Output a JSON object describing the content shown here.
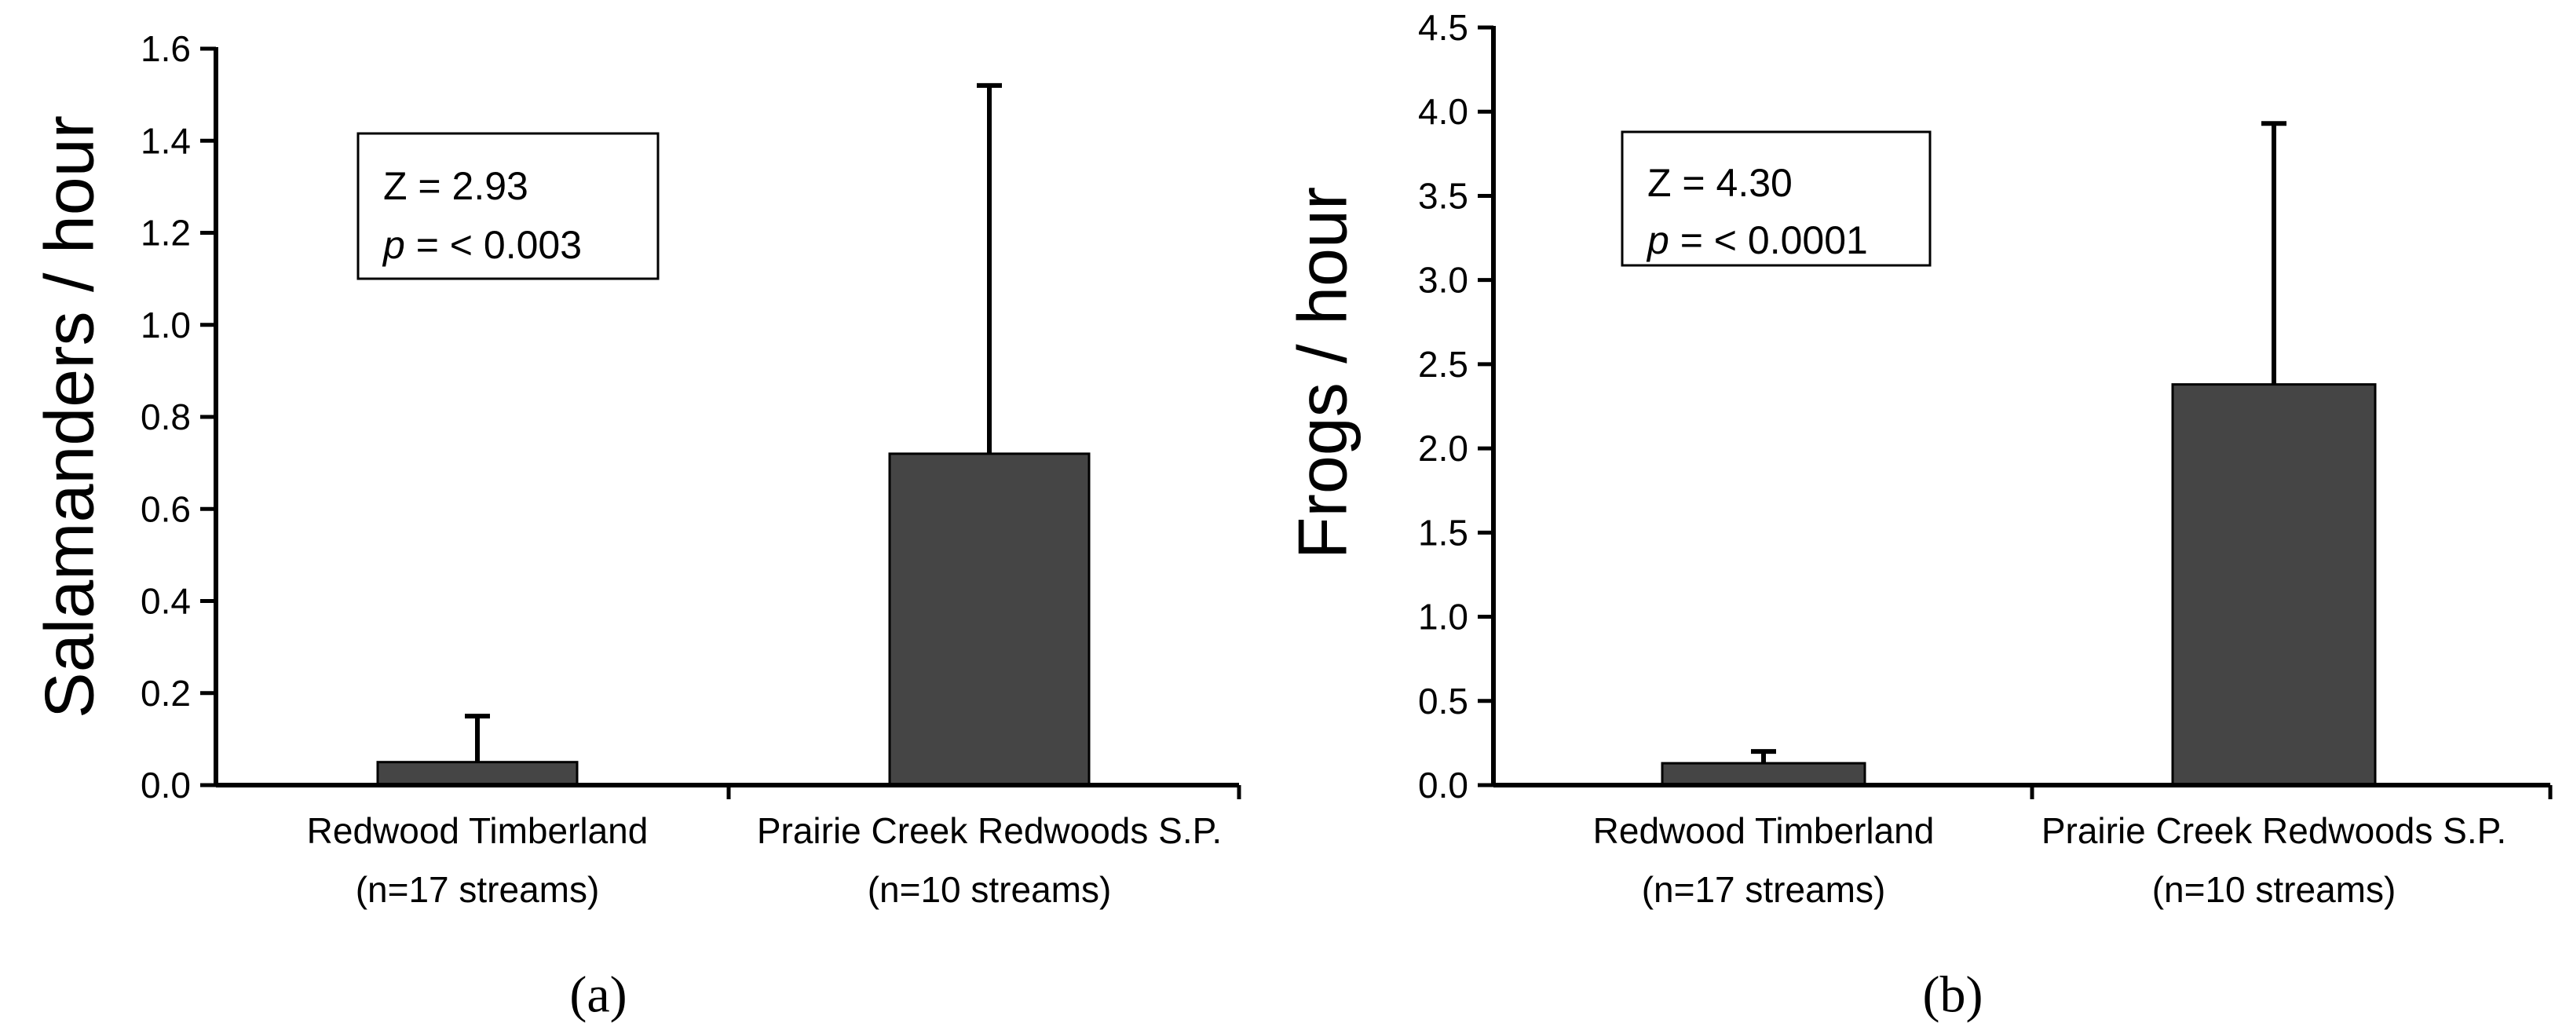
{
  "chart_data": [
    {
      "type": "bar",
      "panel_label": "(a)",
      "ylabel": "Salamanders  / hour",
      "xlabel": "",
      "categories": [
        {
          "line1": "Redwood Timberland",
          "line2": "(n=17 streams)"
        },
        {
          "line1": "Prairie Creek Redwoods S.P.",
          "line2": "(n=10 streams)"
        }
      ],
      "values": [
        0.05,
        0.72
      ],
      "error_upper": [
        0.15,
        1.52
      ],
      "ylim": [
        0,
        1.6
      ],
      "yticks": [
        0.0,
        0.2,
        0.4,
        0.6,
        0.8,
        1.0,
        1.2,
        1.4,
        1.6
      ],
      "ytick_labels": [
        "0.0",
        "0.2",
        "0.4",
        "0.6",
        "0.8",
        "1.0",
        "1.2",
        "1.4",
        "1.6"
      ],
      "bar_color": "#454545",
      "stats": {
        "line1": "Z = 2.93",
        "p_symbol": "p",
        "p_rest": " = < 0.003"
      }
    },
    {
      "type": "bar",
      "panel_label": "(b)",
      "ylabel": "Frogs / hour",
      "xlabel": "",
      "categories": [
        {
          "line1": "Redwood Timberland",
          "line2": "(n=17 streams)"
        },
        {
          "line1": "Prairie Creek Redwoods S.P.",
          "line2": "(n=10 streams)"
        }
      ],
      "values": [
        0.13,
        2.38
      ],
      "error_upper": [
        0.2,
        3.93
      ],
      "ylim": [
        0,
        4.5
      ],
      "yticks": [
        0.0,
        0.5,
        1.0,
        1.5,
        2.0,
        2.5,
        3.0,
        3.5,
        4.0,
        4.5
      ],
      "ytick_labels": [
        "0.0",
        "0.5",
        "1.0",
        "1.5",
        "2.0",
        "2.5",
        "3.0",
        "3.5",
        "4.0",
        "4.5"
      ],
      "bar_color": "#454545",
      "stats": {
        "line1": "Z = 4.30",
        "p_symbol": "p",
        "p_rest": " = < 0.0001"
      }
    }
  ]
}
